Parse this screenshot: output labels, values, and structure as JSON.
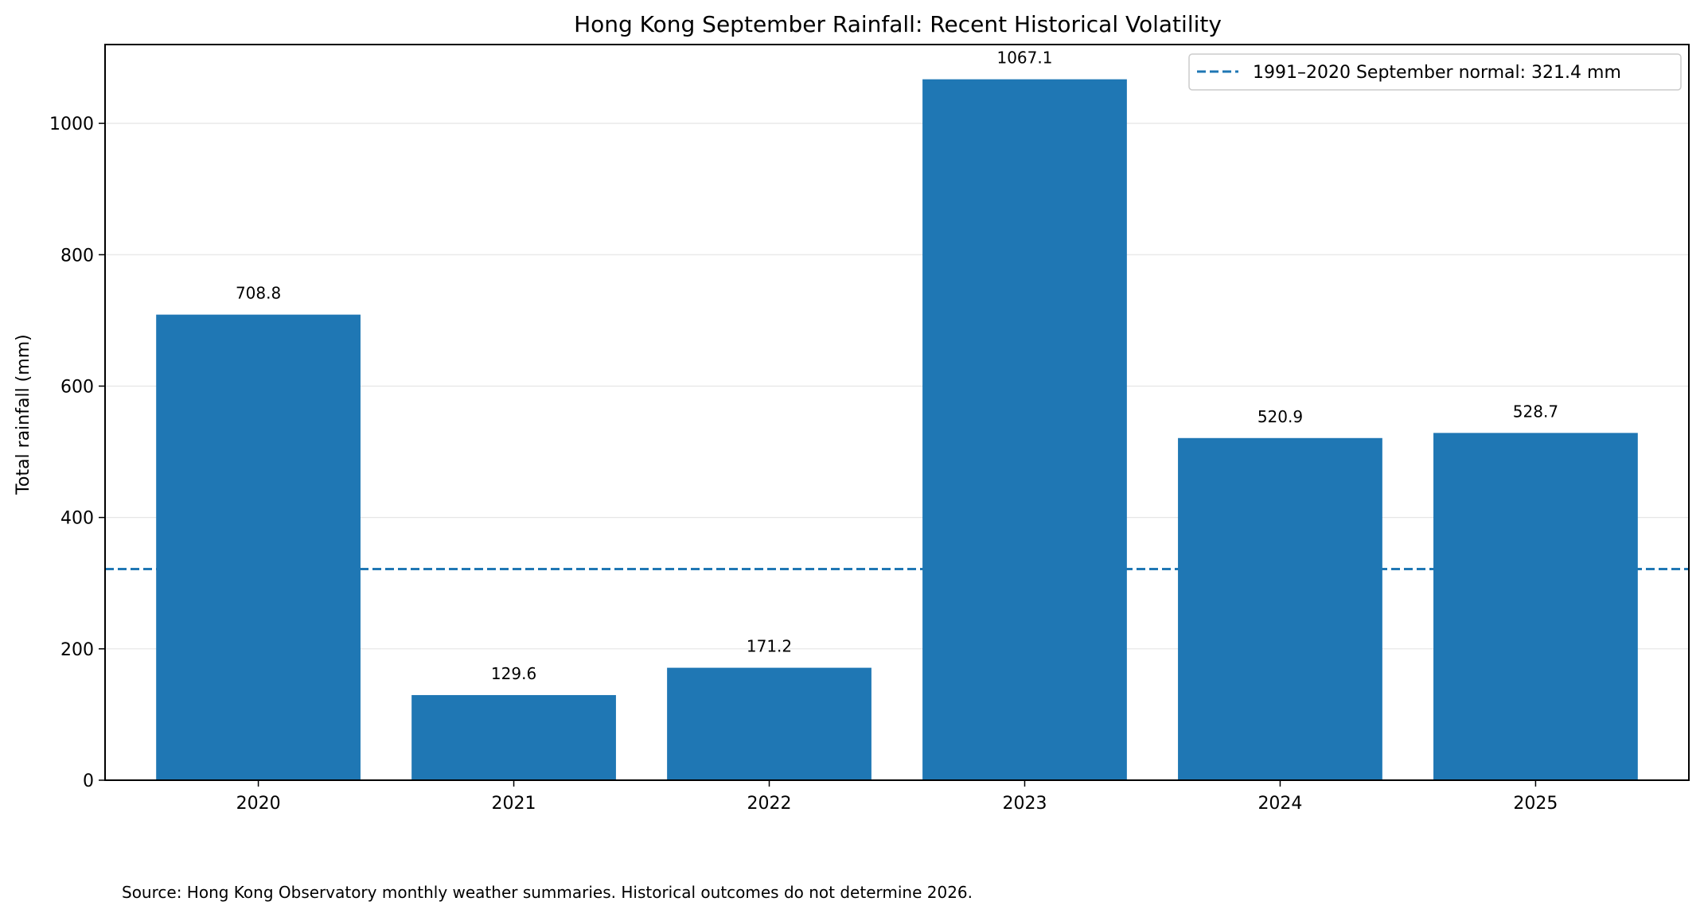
{
  "chart_data": {
    "type": "bar",
    "title": "Hong Kong September Rainfall: Recent Historical Volatility",
    "xlabel": "",
    "ylabel": "Total rainfall (mm)",
    "categories": [
      "2020",
      "2021",
      "2022",
      "2023",
      "2024",
      "2025"
    ],
    "values": [
      708.8,
      129.6,
      171.2,
      1067.1,
      520.9,
      528.7
    ],
    "data_labels": [
      "708.8",
      "129.6",
      "171.2",
      "1067.1",
      "520.9",
      "528.7"
    ],
    "ylim": [
      0,
      1120
    ],
    "yticks": [
      0,
      200,
      400,
      600,
      800,
      1000
    ],
    "grid": "horizontal",
    "bar_color": "#1f77b4",
    "reference_line": {
      "value": 321.4,
      "style": "dashed",
      "color": "#1f77b4",
      "label": "1991–2020 September normal: 321.4 mm"
    },
    "legend_position": "top-right"
  },
  "footer": {
    "source_note": "Source: Hong Kong Observatory monthly weather summaries. Historical outcomes do not determine 2026."
  }
}
